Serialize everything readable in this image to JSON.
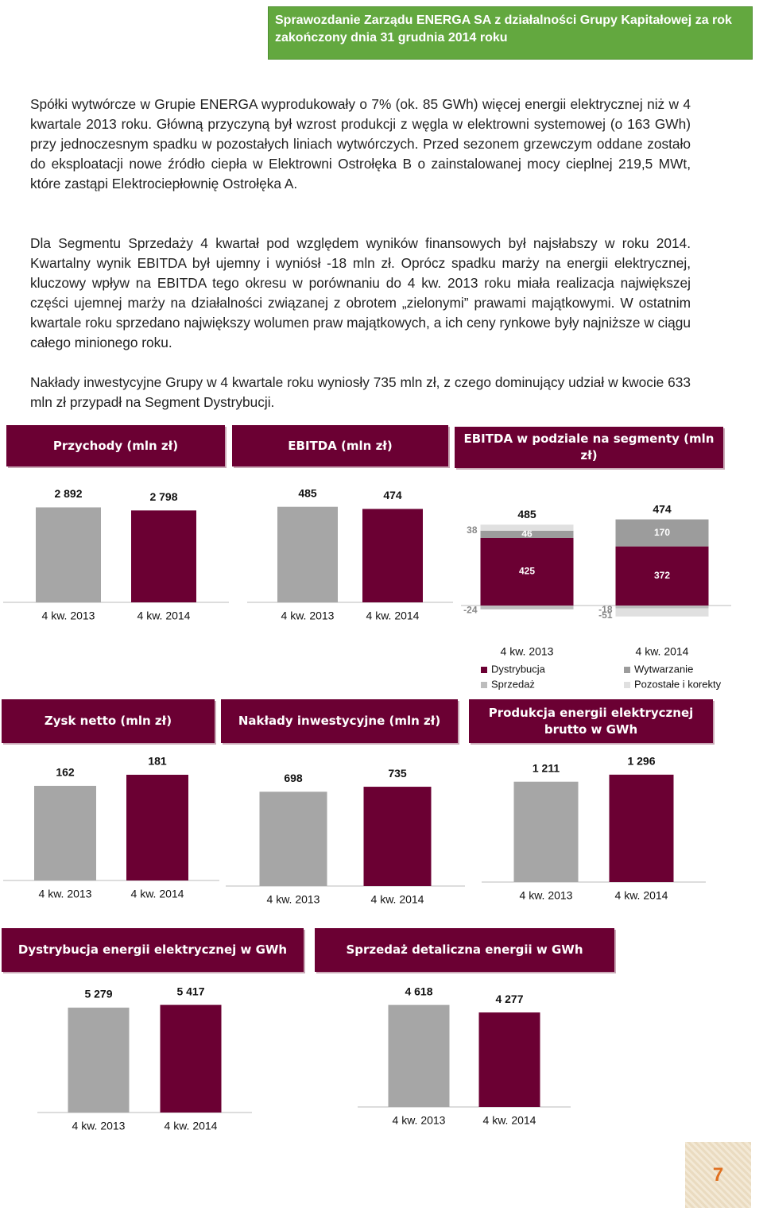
{
  "header": {
    "title": "Sprawozdanie Zarządu ENERGA SA z działalności Grupy Kapitałowej za rok zakończony dnia 31 grudnia 2014 roku"
  },
  "paragraphs": [
    "Spółki wytwórcze w Grupie ENERGA wyprodukowały o 7% (ok. 85 GWh) więcej energii elektrycznej niż w 4 kwartale 2013 roku. Główną przyczyną był wzrost produkcji z węgla w elektrowni systemowej (o 163 GWh) przy jednoczesnym spadku w pozostałych liniach wytwórczych. Przed sezonem grzewczym oddane zostało do eksploatacji nowe źródło ciepła w Elektrowni Ostrołęka B o zainstalowanej mocy cieplnej 219,5 MWt, które zastąpi Elektrociepłownię Ostrołęka A.",
    "Dla Segmentu Sprzedaży 4 kwartał pod względem wyników finansowych był najsłabszy w roku 2014. Kwartalny wynik EBITDA był ujemny i wyniósł -18 mln zł. Oprócz spadku marży na energii elektrycznej, kluczowy wpływ na EBITDA tego okresu w porównaniu do 4 kw. 2013 roku miała realizacja największej części ujemnej marży na działalności związanej z obrotem „zielonymi” prawami majątkowymi. W ostatnim kwartale roku sprzedano największy wolumen praw majątkowych, a ich ceny rynkowe były najniższe w ciągu całego minionego roku.",
    "Nakłady inwestycyjne Grupy w 4 kwartale roku wyniosły 735 mln zł, z czego dominujący udział w kwocie 633 mln zł przypadł na Segment Dystrybucji."
  ],
  "chart_data": [
    {
      "type": "bar",
      "title": "Przychody (mln zł)",
      "categories": [
        "4 kw. 2013",
        "4 kw. 2014"
      ],
      "values": [
        2892,
        2798
      ],
      "value_labels": [
        "2 892",
        "2 798"
      ],
      "colors": [
        "#a6a6a6",
        "#6b0033"
      ],
      "ylim": [
        0,
        3000
      ]
    },
    {
      "type": "bar",
      "title": "EBITDA (mln zł)",
      "categories": [
        "4 kw. 2013",
        "4 kw. 2014"
      ],
      "values": [
        485,
        474
      ],
      "colors": [
        "#a6a6a6",
        "#6b0033"
      ],
      "ylim": [
        0,
        500
      ]
    },
    {
      "type": "stacked_bar",
      "title": "EBITDA w podziale na segmenty (mln zł)",
      "categories": [
        "4 kw. 2013",
        "4 kw. 2014"
      ],
      "totals": [
        485,
        474
      ],
      "series": [
        {
          "name": "Dystrybucja",
          "color": "#6b0033",
          "values": [
            425,
            372
          ]
        },
        {
          "name": "Wytwarzanie",
          "color": "#9c9c9c",
          "values": [
            46,
            170
          ]
        },
        {
          "name": "Sprzedaż",
          "color": "#bdbdbd",
          "values": [
            -24,
            -18
          ]
        },
        {
          "name": "Pozostałe i korekty",
          "color": "#e0e0e0",
          "values": [
            38,
            -51
          ]
        }
      ],
      "ylim": [
        -100,
        550
      ]
    },
    {
      "type": "bar",
      "title": "Zysk netto (mln zł)",
      "categories": [
        "4 kw. 2013",
        "4 kw. 2014"
      ],
      "values": [
        162,
        181
      ],
      "colors": [
        "#a6a6a6",
        "#6b0033"
      ],
      "ylim": [
        0,
        200
      ]
    },
    {
      "type": "bar",
      "title": "Nakłady inwestycyjne (mln zł)",
      "categories": [
        "4 kw. 2013",
        "4 kw. 2014"
      ],
      "values": [
        698,
        735
      ],
      "colors": [
        "#a6a6a6",
        "#6b0033"
      ],
      "ylim": [
        0,
        800
      ]
    },
    {
      "type": "bar",
      "title": "Produkcja energii elektrycznej brutto w GWh",
      "categories": [
        "4 kw. 2013",
        "4 kw. 2014"
      ],
      "values": [
        1211,
        1296
      ],
      "value_labels": [
        "1 211",
        "1 296"
      ],
      "colors": [
        "#a6a6a6",
        "#6b0033"
      ],
      "ylim": [
        0,
        1400
      ]
    },
    {
      "type": "bar",
      "title": "Dystrybucja energii elektrycznej w GWh",
      "categories": [
        "4 kw. 2013",
        "4 kw. 2014"
      ],
      "values": [
        5279,
        5417
      ],
      "value_labels": [
        "5 279",
        "5 417"
      ],
      "colors": [
        "#a6a6a6",
        "#6b0033"
      ],
      "ylim": [
        0,
        6000
      ]
    },
    {
      "type": "bar",
      "title": "Sprzedaż detaliczna energii w GWh",
      "categories": [
        "4 kw. 2013",
        "4 kw. 2014"
      ],
      "values": [
        4618,
        4277
      ],
      "value_labels": [
        "4 618",
        "4 277"
      ],
      "colors": [
        "#a6a6a6",
        "#6b0033"
      ],
      "ylim": [
        0,
        5000
      ]
    }
  ],
  "page_number": "7"
}
